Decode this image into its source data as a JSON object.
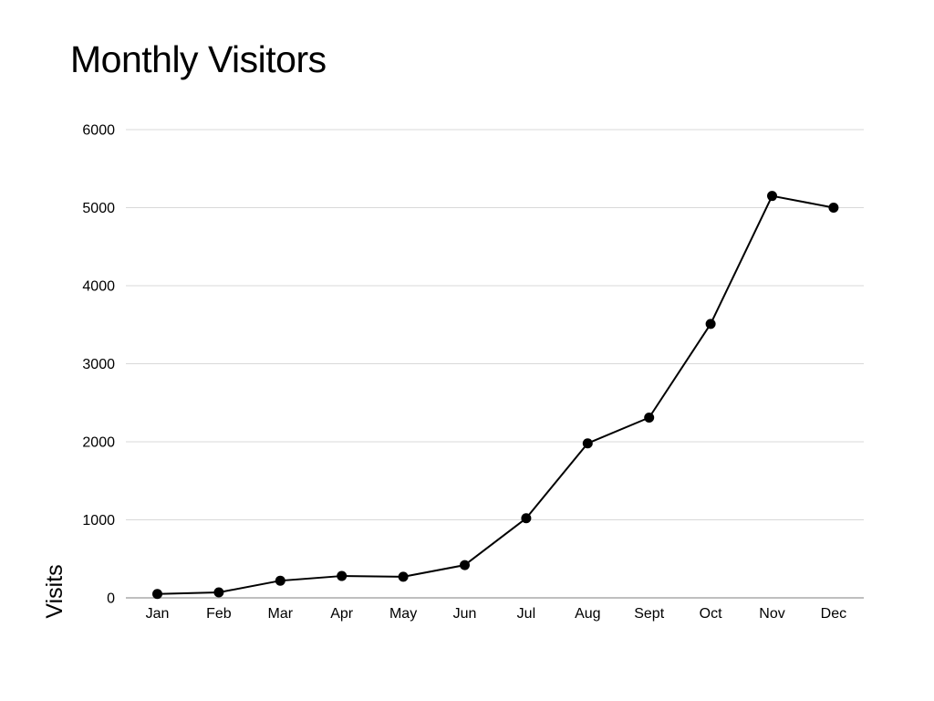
{
  "chart_data": {
    "type": "line",
    "title": "Monthly Visitors",
    "xlabel": "",
    "ylabel": "Visits",
    "categories": [
      "Jan",
      "Feb",
      "Mar",
      "Apr",
      "May",
      "Jun",
      "Jul",
      "Aug",
      "Sept",
      "Oct",
      "Nov",
      "Dec"
    ],
    "series": [
      {
        "values": [
          50,
          70,
          220,
          280,
          270,
          420,
          1020,
          1980,
          2310,
          3510,
          5150,
          5000
        ]
      }
    ],
    "ylim": [
      0,
      6000
    ],
    "yticks": [
      0,
      1000,
      2000,
      3000,
      4000,
      5000,
      6000
    ],
    "grid": true,
    "legend": "none",
    "colors": {
      "line": "#000000",
      "marker": "#000000",
      "grid": "#d9d9d9",
      "axis": "#aaaaaa"
    }
  }
}
